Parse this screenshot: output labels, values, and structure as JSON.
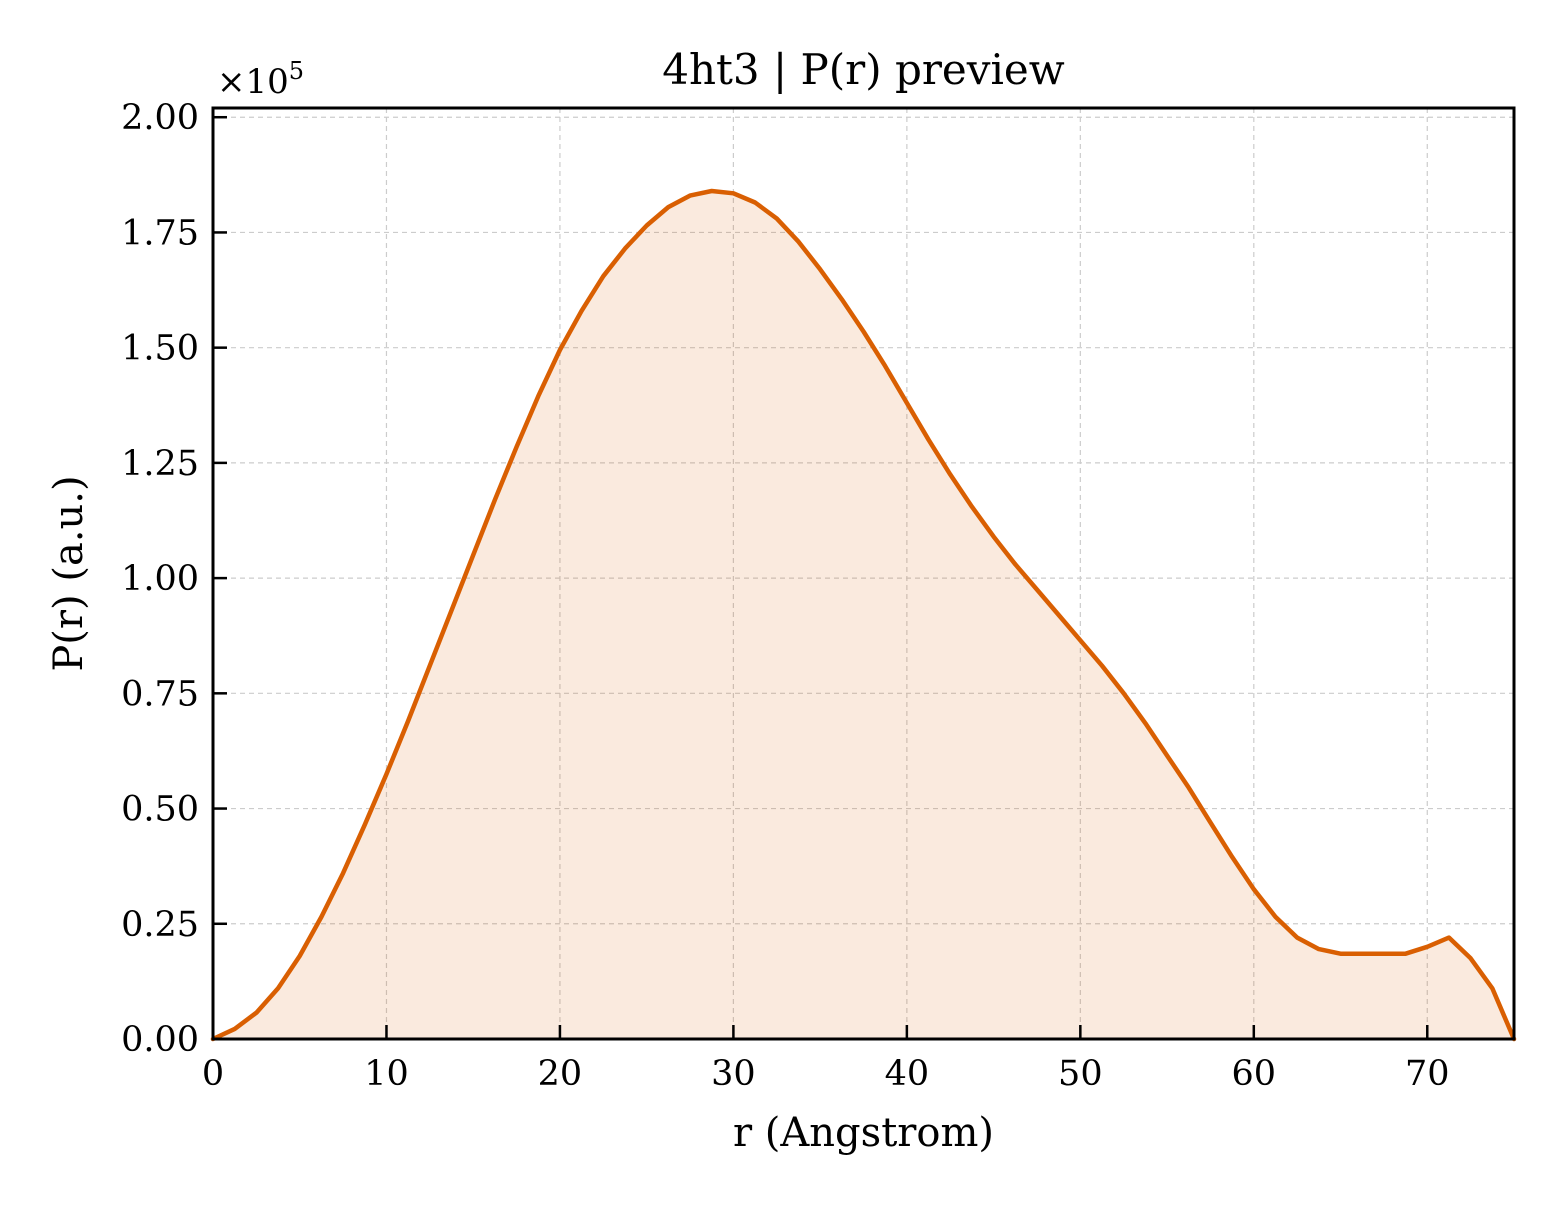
{
  "chart_data": {
    "type": "area",
    "title": "4ht3 | P(r) preview",
    "xlabel": "r (Angstrom)",
    "ylabel": "P(r) (a.u.)",
    "y_offset_base": "×10",
    "y_offset_exponent": "5",
    "xlim": [
      0,
      75
    ],
    "ylim": [
      0,
      202000
    ],
    "grid": true,
    "legend": "none",
    "x_ticks": [
      0,
      10,
      20,
      30,
      40,
      50,
      60,
      70
    ],
    "x_tick_labels": [
      "0",
      "10",
      "20",
      "30",
      "40",
      "50",
      "60",
      "70"
    ],
    "y_ticks": [
      0,
      25000,
      50000,
      75000,
      100000,
      125000,
      150000,
      175000,
      200000
    ],
    "y_tick_labels": [
      "0.00",
      "0.25",
      "0.50",
      "0.75",
      "1.00",
      "1.25",
      "1.50",
      "1.75",
      "2.00"
    ],
    "series": [
      {
        "color": "#d95f02",
        "fill_color": "#d95f02",
        "fill_opacity": 0.13,
        "x": [
          0,
          1.25,
          2.5,
          3.75,
          5,
          6.25,
          7.5,
          8.75,
          10,
          11.25,
          12.5,
          13.75,
          15,
          16.25,
          17.5,
          18.75,
          20,
          21.25,
          22.5,
          23.75,
          25,
          26.25,
          27.5,
          28.75,
          30,
          31.25,
          32.5,
          33.75,
          35,
          36.25,
          37.5,
          38.75,
          40,
          41.25,
          42.5,
          43.75,
          45,
          46.25,
          47.5,
          48.75,
          50,
          51.25,
          52.5,
          53.75,
          55,
          56.25,
          57.5,
          58.75,
          60,
          61.25,
          62.5,
          63.75,
          65,
          66.25,
          67.5,
          68.75,
          70,
          71.25,
          72.5,
          73.75,
          75
        ],
        "y": [
          0,
          2200,
          5700,
          11000,
          18000,
          26500,
          36000,
          46500,
          57500,
          69000,
          81000,
          93000,
          105000,
          117000,
          128500,
          139500,
          149500,
          158000,
          165500,
          171500,
          176500,
          180500,
          183000,
          184000,
          183500,
          181500,
          178000,
          173000,
          167000,
          160500,
          153500,
          146000,
          138000,
          130000,
          122500,
          115500,
          109000,
          103000,
          97500,
          92000,
          86500,
          81000,
          75000,
          68500,
          61500,
          54500,
          47000,
          39500,
          32500,
          26500,
          22000,
          19500,
          18500,
          18500,
          18500,
          18500,
          20000,
          22000,
          17500,
          11000,
          0
        ]
      }
    ]
  }
}
